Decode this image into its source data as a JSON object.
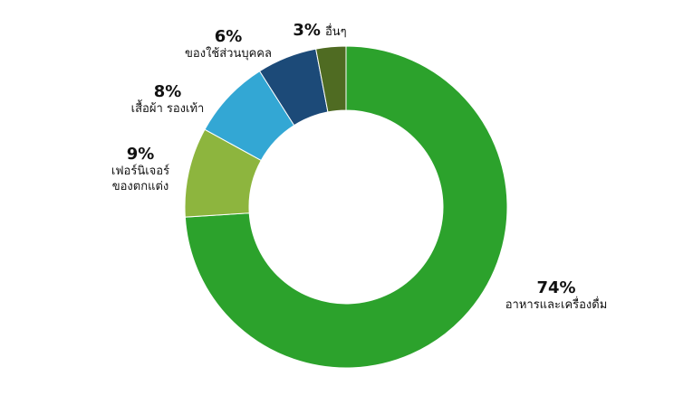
{
  "chart_data": {
    "type": "donut",
    "categories": [
      "อาหารและเครื่องดื่ม",
      "เฟอร์นิเจอร์\nของตกแต่ง",
      "เสื้อผ้า รองเท้า",
      "ของใช้ส่วนบุคคล",
      "อื่นๆ"
    ],
    "values": [
      74,
      9,
      8,
      6,
      3
    ],
    "value_labels": [
      "74%",
      "9%",
      "8%",
      "6%",
      "3%"
    ],
    "colors": [
      "#2ca22c",
      "#8db53e",
      "#33a7d4",
      "#1c4a78",
      "#4f6b22"
    ]
  }
}
